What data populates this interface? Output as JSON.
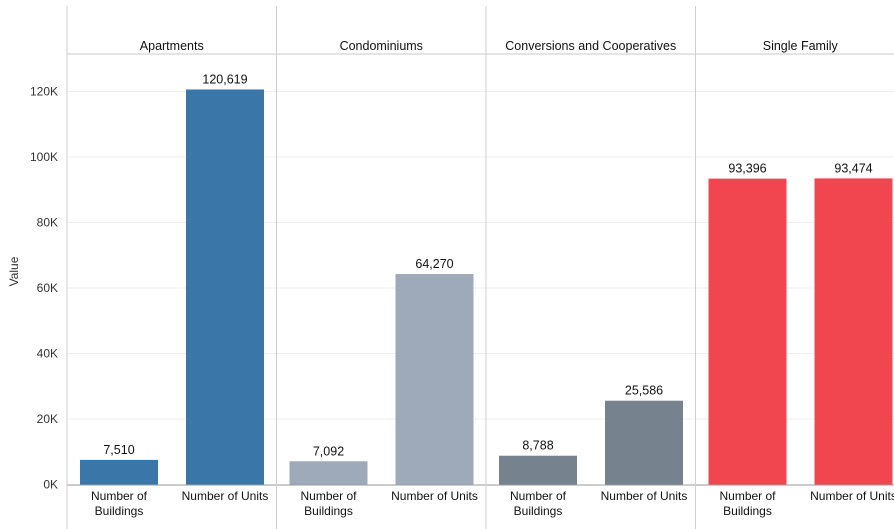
{
  "chart_data": {
    "type": "bar",
    "ylabel": "Value",
    "ylim": [
      0,
      130000
    ],
    "y_ticks": [
      0,
      20000,
      40000,
      60000,
      80000,
      100000,
      120000
    ],
    "y_tick_labels": [
      "0K",
      "20K",
      "40K",
      "60K",
      "80K",
      "100K",
      "120K"
    ],
    "categories": [
      "Number of Buildings",
      "Number of Units"
    ],
    "category_labels": [
      [
        "Number of",
        "Buildings"
      ],
      [
        "Number of Units"
      ]
    ],
    "grid": true,
    "panels": [
      {
        "name": "Apartments",
        "color": "#3b76a8",
        "values": [
          7510,
          120619
        ],
        "value_labels": [
          "7,510",
          "120,619"
        ]
      },
      {
        "name": "Condominiums",
        "color": "#9ea9ba",
        "values": [
          7092,
          64270
        ],
        "value_labels": [
          "7,092",
          "64,270"
        ]
      },
      {
        "name": "Conversions and Cooperatives",
        "color": "#76828e",
        "values": [
          8788,
          25586
        ],
        "value_labels": [
          "8,788",
          "25,586"
        ]
      },
      {
        "name": "Single Family",
        "color": "#f1464f",
        "values": [
          93396,
          93474
        ],
        "value_labels": [
          "93,396",
          "93,474"
        ]
      }
    ]
  }
}
